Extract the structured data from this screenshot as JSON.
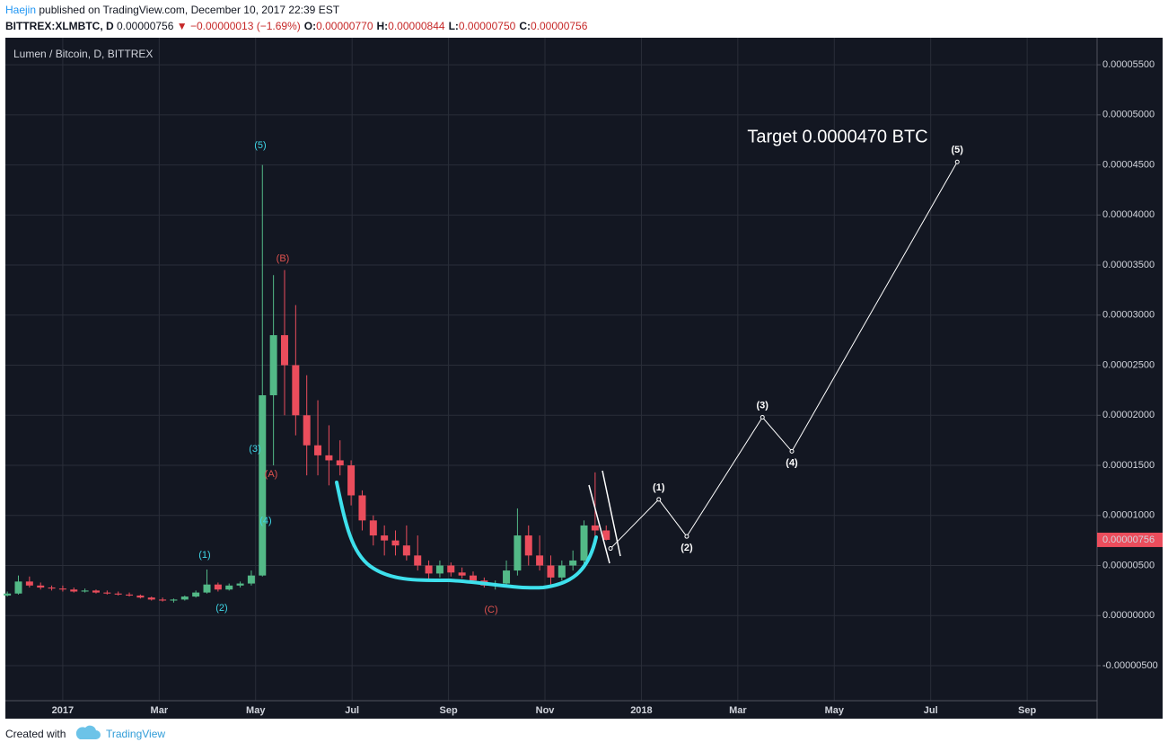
{
  "header": {
    "author": "Haejin",
    "published": "published on TradingView.com, December 10, 2017 22:39 EST",
    "symbol": "BITTREX:XLMBTC, D",
    "price": "0.00000756",
    "direction": "▼",
    "change": "−0.00000013 (−1.69%)",
    "ohlc": [
      {
        "key": "O:",
        "value": "0.00000770"
      },
      {
        "key": "H:",
        "value": "0.00000844"
      },
      {
        "key": "L:",
        "value": "0.00000750"
      },
      {
        "key": "C:",
        "value": "0.00000756"
      }
    ]
  },
  "footer": {
    "created": "Created with",
    "brand": "TradingView"
  },
  "chart_data": {
    "type": "candlestick",
    "title": "Lumen / Bitcoin, D, BITTREX",
    "up_color": "#53b987",
    "down_color": "#eb4d5c",
    "x": [
      -1.15,
      -0.92,
      -0.69,
      -0.46,
      -0.23,
      0,
      0.23,
      0.46,
      0.69,
      0.92,
      1.15,
      1.38,
      1.61,
      1.84,
      2.07,
      2.3,
      2.53,
      2.76,
      2.99,
      3.22,
      3.45,
      3.68,
      3.91,
      4.14,
      4.37,
      4.6,
      4.83,
      5.06,
      5.29,
      5.52,
      5.75,
      5.98,
      6.21,
      6.44,
      6.67,
      6.9,
      7.13,
      7.36,
      7.59,
      7.82,
      8.05,
      8.28,
      8.51,
      8.74,
      8.97,
      9.2,
      9.43,
      9.66,
      9.89,
      10.12,
      10.35,
      10.58,
      10.81,
      11.04,
      11.27
    ],
    "open": [
      2e-06,
      2.2e-06,
      3.4e-06,
      3e-06,
      2.8e-06,
      2.7e-06,
      2.6e-06,
      2.4e-06,
      2.5e-06,
      2.3e-06,
      2.2e-06,
      2.1e-06,
      2e-06,
      1.8e-06,
      1.6e-06,
      1.5e-06,
      1.6e-06,
      1.9e-06,
      2.3e-06,
      3.1e-06,
      2.6e-06,
      3e-06,
      3.2e-06,
      4e-06,
      2.2e-05,
      2.8e-05,
      2.5e-05,
      2e-05,
      1.7e-05,
      1.6e-05,
      1.55e-05,
      1.5e-05,
      1.2e-05,
      9.5e-06,
      8e-06,
      7.5e-06,
      7e-06,
      6e-06,
      5e-06,
      4.2e-06,
      5e-06,
      4.3e-06,
      4e-06,
      3.5e-06,
      3e-06,
      3.2e-06,
      4.5e-06,
      8e-06,
      6e-06,
      5e-06,
      3.8e-06,
      5e-06,
      5.5e-06,
      9e-06,
      8.5e-06
    ],
    "high": [
      2.4e-06,
      4e-06,
      3.9e-06,
      3.3e-06,
      3e-06,
      3e-06,
      2.8e-06,
      2.7e-06,
      2.6e-06,
      2.5e-06,
      2.4e-06,
      2.3e-06,
      2.1e-06,
      1.9e-06,
      1.8e-06,
      1.7e-06,
      2e-06,
      2.5e-06,
      4.6e-06,
      3.3e-06,
      3.2e-06,
      3.4e-06,
      4.5e-06,
      4.5e-05,
      3.4e-05,
      3.45e-05,
      3.1e-05,
      2.4e-05,
      2.15e-05,
      1.9e-05,
      1.75e-05,
      1.55e-05,
      1.25e-05,
      1e-05,
      9e-06,
      8.5e-06,
      9e-06,
      8e-06,
      5.5e-06,
      5.5e-06,
      5.3e-06,
      4.8e-06,
      4.4e-06,
      3.8e-06,
      3.5e-06,
      5.5e-06,
      1.07e-05,
      9e-06,
      8e-06,
      6e-06,
      5.5e-06,
      6.5e-06,
      9.5e-06,
      1.43e-05,
      9e-06
    ],
    "low": [
      1.9e-06,
      2.1e-06,
      2.8e-06,
      2.6e-06,
      2.5e-06,
      2.4e-06,
      2.3e-06,
      2.3e-06,
      2.2e-06,
      2.1e-06,
      2e-06,
      1.9e-06,
      1.7e-06,
      1.5e-06,
      1.4e-06,
      1.3e-06,
      1.5e-06,
      1.8e-06,
      2.2e-06,
      2.4e-06,
      2.5e-06,
      2.8e-06,
      3e-06,
      3.9e-06,
      1.5e-05,
      2e-05,
      1.8e-05,
      1.4e-05,
      1.4e-05,
      1.3e-05,
      1.4e-05,
      1.1e-05,
      8.5e-06,
      7e-06,
      6e-06,
      6e-06,
      5.5e-06,
      4.5e-06,
      3.5e-06,
      3.8e-06,
      3.9e-06,
      3.7e-06,
      3.3e-06,
      2.8e-06,
      2.6e-06,
      2.9e-06,
      4e-06,
      5e-06,
      4.5e-06,
      3e-06,
      3.5e-06,
      4.5e-06,
      5e-06,
      7.5e-06,
      7.5e-06
    ],
    "close": [
      2.2e-06,
      3.4e-06,
      3e-06,
      2.8e-06,
      2.7e-06,
      2.6e-06,
      2.4e-06,
      2.5e-06,
      2.3e-06,
      2.2e-06,
      2.1e-06,
      2e-06,
      1.8e-06,
      1.6e-06,
      1.5e-06,
      1.6e-06,
      1.9e-06,
      2.3e-06,
      3.1e-06,
      2.6e-06,
      3e-06,
      3.2e-06,
      4e-06,
      2.2e-05,
      2.8e-05,
      2.5e-05,
      2e-05,
      1.7e-05,
      1.6e-05,
      1.55e-05,
      1.5e-05,
      1.2e-05,
      9.5e-06,
      8e-06,
      7.5e-06,
      7e-06,
      6e-06,
      5e-06,
      4.2e-06,
      5e-06,
      4.3e-06,
      4e-06,
      3.5e-06,
      3e-06,
      3.2e-06,
      4.5e-06,
      8e-06,
      6e-06,
      5e-06,
      3.8e-06,
      5e-06,
      5.5e-06,
      9e-06,
      8.5e-06,
      7.56e-06
    ],
    "xlim": [
      -1.19,
      21.45
    ],
    "xticks": [
      {
        "value": 0,
        "label": "2017"
      },
      {
        "value": 2,
        "label": "Mar"
      },
      {
        "value": 4,
        "label": "May"
      },
      {
        "value": 6,
        "label": "Jul"
      },
      {
        "value": 8,
        "label": "Sep"
      },
      {
        "value": 10,
        "label": "Nov"
      },
      {
        "value": 12,
        "label": "2018"
      },
      {
        "value": 14,
        "label": "Mar"
      },
      {
        "value": 16,
        "label": "May"
      },
      {
        "value": 18,
        "label": "Jul"
      },
      {
        "value": 20,
        "label": "Sep"
      }
    ],
    "ylim": [
      -8.5e-06,
      5.77e-05
    ],
    "yticks": [
      {
        "value": -5e-06,
        "label": "-0.00000500"
      },
      {
        "value": 0,
        "label": "0.00000000"
      },
      {
        "value": 5e-06,
        "label": "0.00000500"
      },
      {
        "value": 1e-05,
        "label": "0.00001000"
      },
      {
        "value": 1.5e-05,
        "label": "0.00001500"
      },
      {
        "value": 2e-05,
        "label": "0.00002000"
      },
      {
        "value": 2.5e-05,
        "label": "0.00002500"
      },
      {
        "value": 3e-05,
        "label": "0.00003000"
      },
      {
        "value": 3.5e-05,
        "label": "0.00003500"
      },
      {
        "value": 4e-05,
        "label": "0.00004000"
      },
      {
        "value": 4.5e-05,
        "label": "0.00004500"
      },
      {
        "value": 5e-05,
        "label": "0.00005000"
      },
      {
        "value": 5.5e-05,
        "label": "0.00005500"
      }
    ],
    "grid": true,
    "last_price": {
      "value": 7.56e-06,
      "label": "0.00000756"
    },
    "projection": {
      "color": "#ffffff",
      "x": [
        11.36,
        12.36,
        12.94,
        14.51,
        15.12,
        18.55
      ],
      "values": [
        6.7e-06,
        1.16e-05,
        7.9e-06,
        1.98e-05,
        1.64e-05,
        4.53e-05
      ],
      "labels": [
        null,
        "(1)",
        "(2)",
        "(3)",
        "(4)",
        "(5)"
      ]
    },
    "wave_labels": [
      {
        "text": "(5)",
        "color": "#3fd6e6"
      },
      {
        "text": "(3)",
        "color": "#3fd6e6"
      },
      {
        "text": "(4)",
        "color": "#3fd6e6"
      },
      {
        "text": "(1)",
        "color": "#3fd6e6"
      },
      {
        "text": "(2)",
        "color": "#3fd6e6"
      },
      {
        "text": "(B)",
        "color": "#e0524f"
      },
      {
        "text": "(A)",
        "color": "#e0524f"
      },
      {
        "text": "(C)",
        "color": "#e0524f"
      }
    ],
    "annotations": [
      {
        "text": "Target 0.0000470 BTC"
      }
    ]
  }
}
